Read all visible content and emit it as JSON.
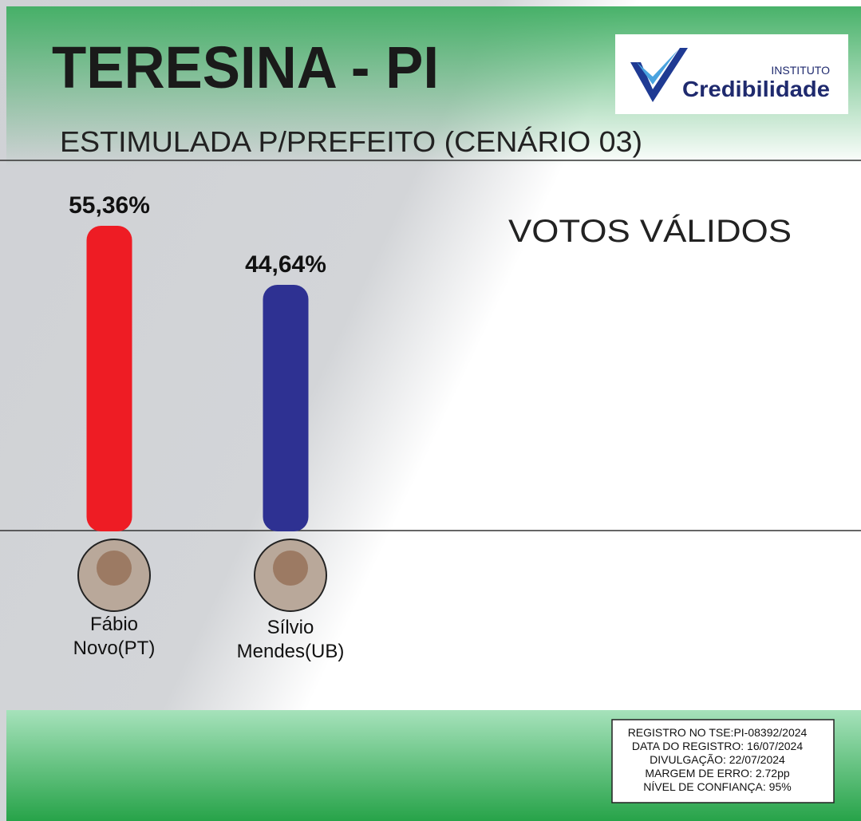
{
  "chart_data": {
    "type": "bar",
    "title": "TERESINA - PI",
    "subtitle": "ESTIMULADA P/PREFEITO (CENÁRIO 03)",
    "annotation": "VOTOS VÁLIDOS",
    "categories": [
      "Fábio Novo(PT)",
      "Sílvio Mendes(UB)"
    ],
    "values": [
      55.36,
      44.64
    ],
    "value_labels": [
      "55,36%",
      "44,64%"
    ],
    "colors": [
      "#ee1c24",
      "#2e3192"
    ]
  },
  "logo": {
    "small": "INSTITUTO",
    "name": "Credibilidade"
  },
  "footer": [
    "REGISTRO NO TSE:PI-08392/2024",
    "DATA DO REGISTRO: 16/07/2024",
    "DIVULGAÇÃO: 22/07/2024",
    "MARGEM DE ERRO: 2.72pp",
    "NÍVEL DE CONFIANÇA: 95%"
  ]
}
